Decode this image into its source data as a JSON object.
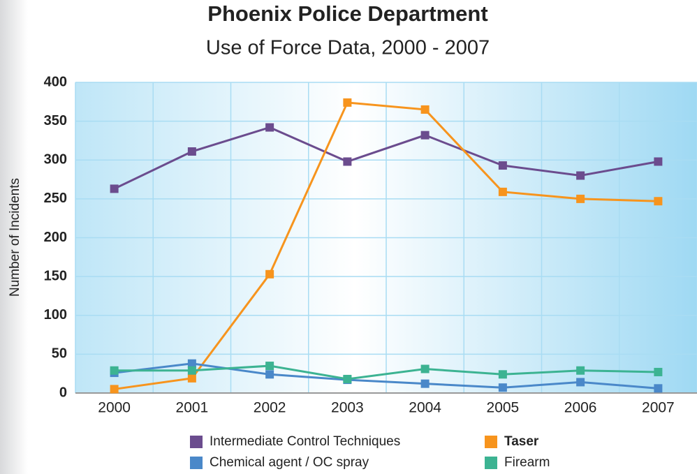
{
  "chart_data": {
    "type": "line",
    "title": "Phoenix Police Department",
    "subtitle": "Use of Force Data, 2000 - 2007",
    "y_label": "Number of Incidents",
    "categories": [
      "2000",
      "2001",
      "2002",
      "2003",
      "2004",
      "2005",
      "2006",
      "2007"
    ],
    "series": [
      {
        "name": "Intermediate Control Techniques",
        "color": "#6b4c8e",
        "values": [
          263,
          311,
          342,
          298,
          332,
          293,
          280,
          298
        ]
      },
      {
        "name": "Taser",
        "color": "#f7941d",
        "values": [
          5,
          19,
          153,
          374,
          365,
          259,
          250,
          247
        ]
      },
      {
        "name": "Chemical agent / OC spray",
        "color": "#4a88c9",
        "values": [
          26,
          38,
          24,
          17,
          12,
          7,
          14,
          6
        ]
      },
      {
        "name": "Firearm",
        "color": "#3cb392",
        "values": [
          29,
          29,
          35,
          18,
          31,
          24,
          29,
          27
        ]
      }
    ],
    "ylim": [
      0,
      400
    ],
    "yticks": [
      0,
      50,
      100,
      150,
      200,
      250,
      300,
      350,
      400
    ],
    "grid": true
  }
}
